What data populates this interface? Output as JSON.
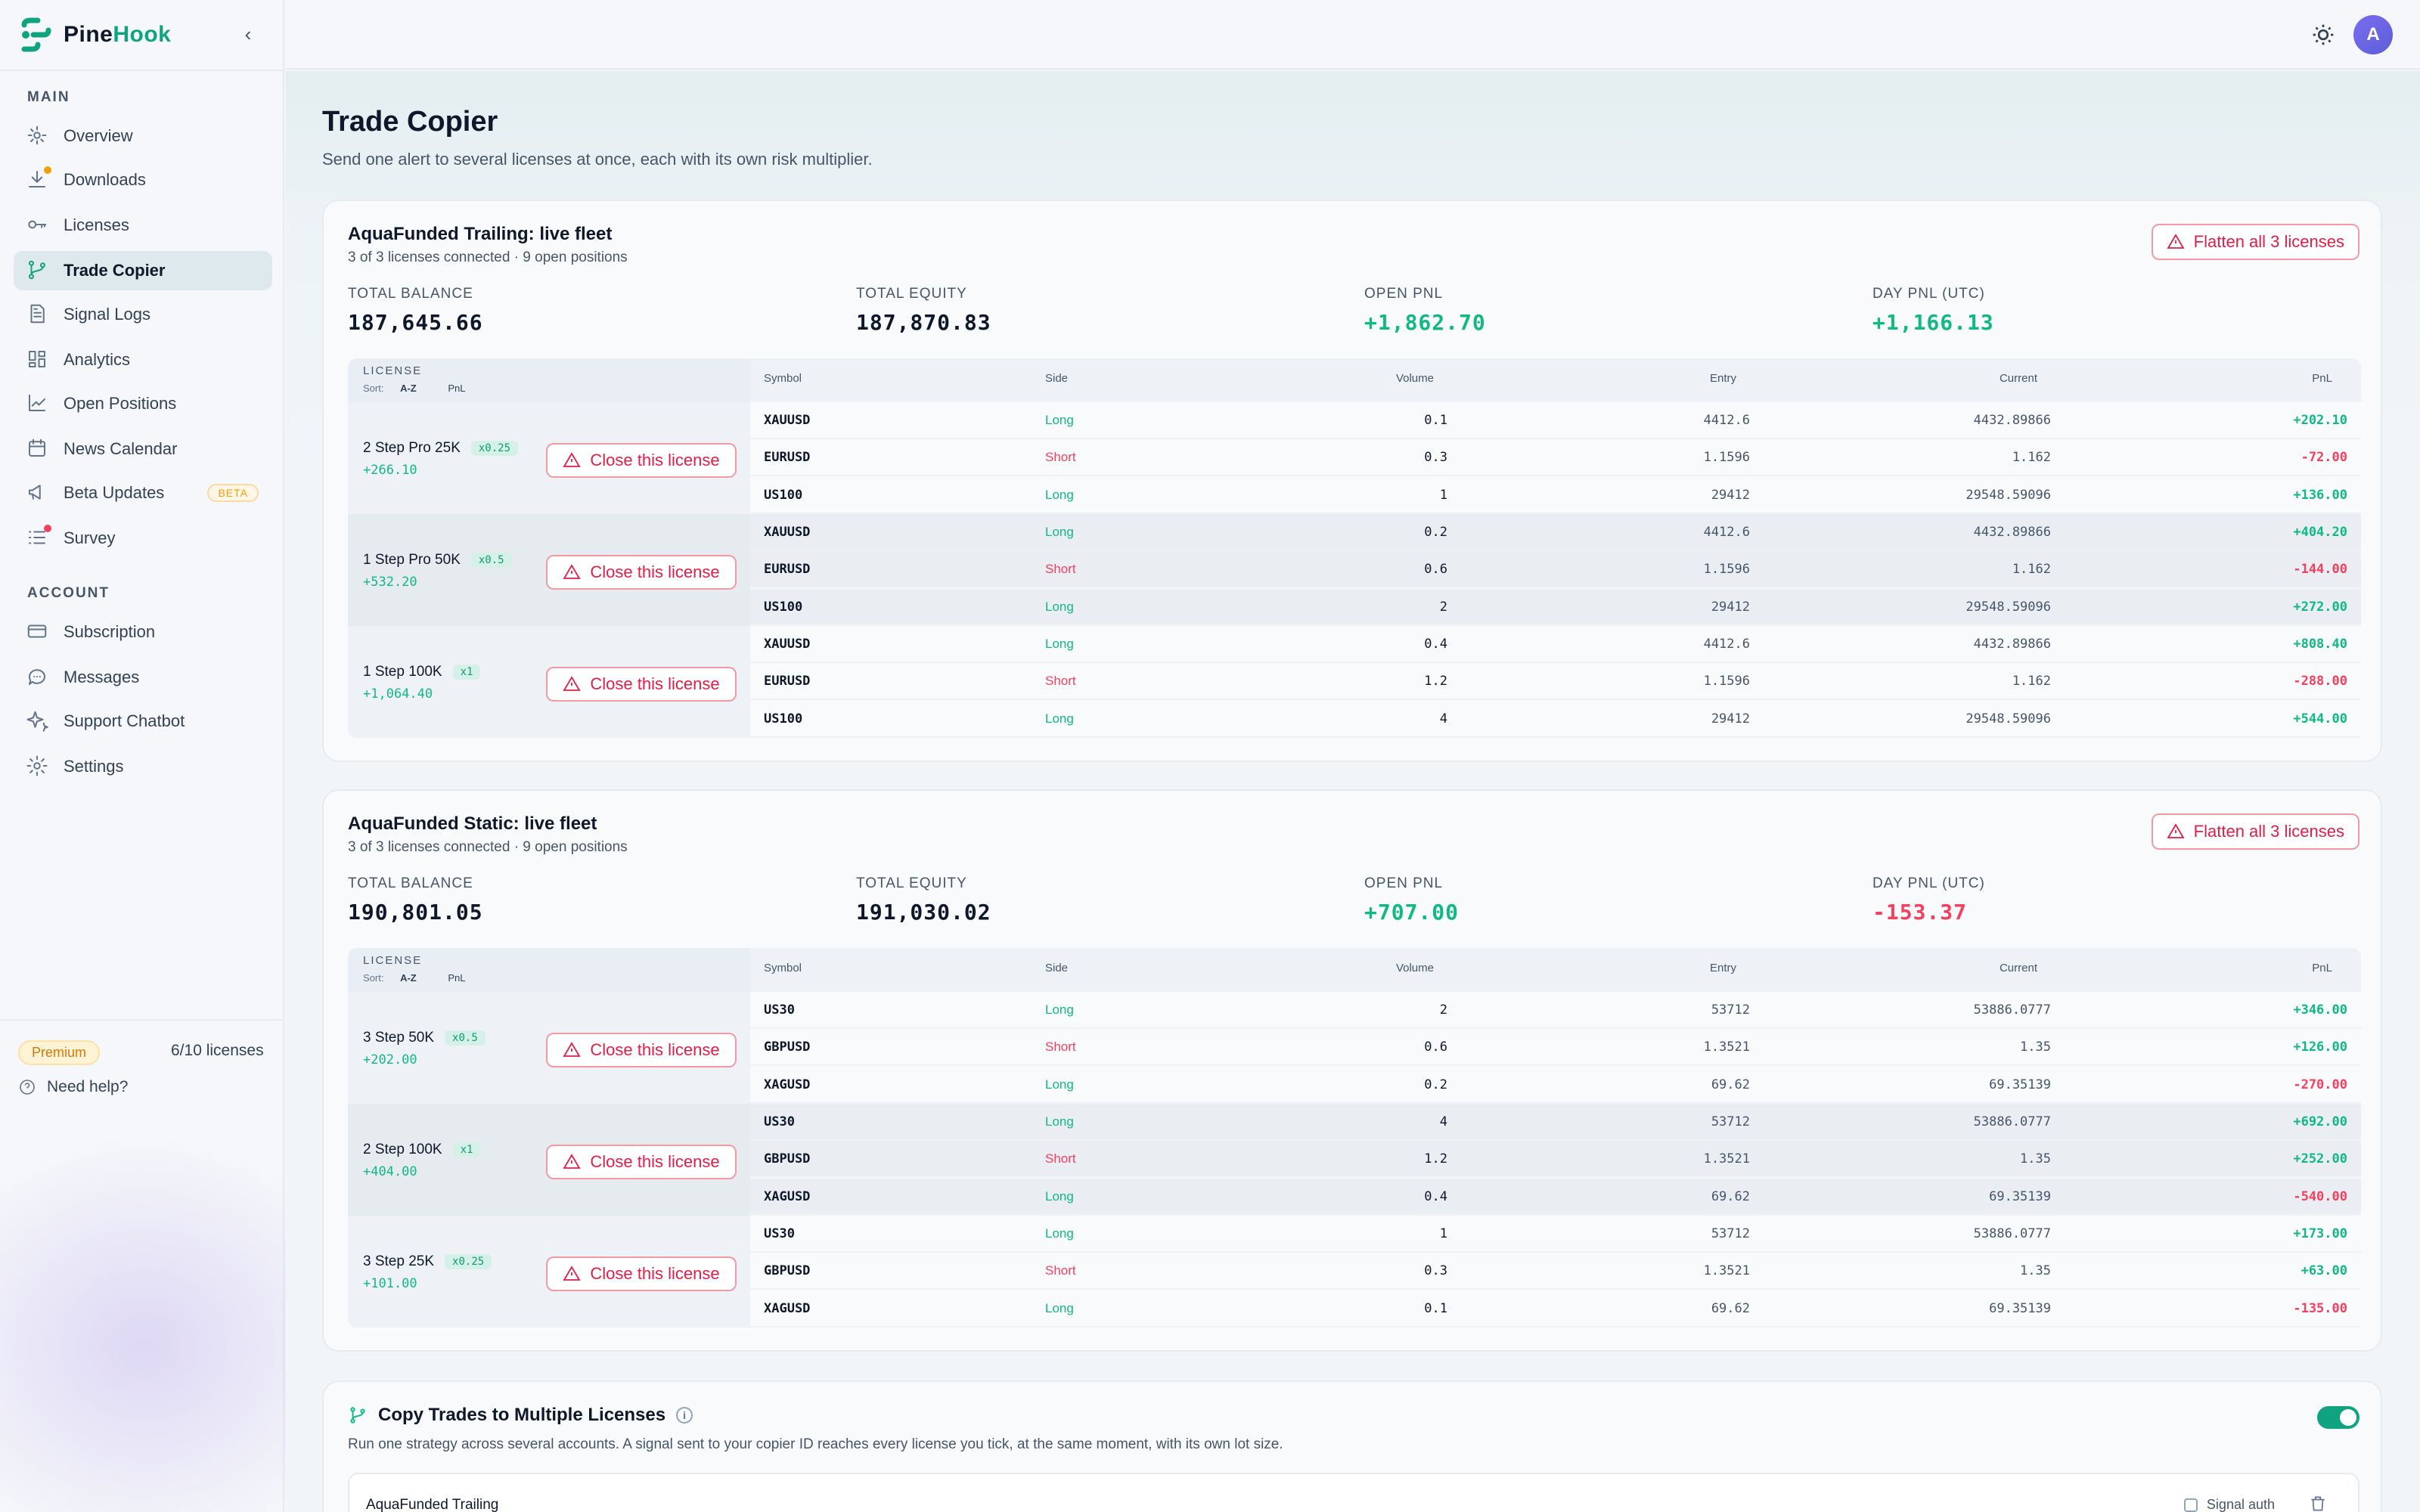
{
  "brand": {
    "name_part1": "Pine",
    "name_part2": "Hook"
  },
  "sidebar": {
    "section_main": "MAIN",
    "section_account": "ACCOUNT",
    "main_items": [
      {
        "label": "Overview",
        "icon": "overview-icon"
      },
      {
        "label": "Downloads",
        "icon": "download-icon",
        "dot_color": "#f59e0b"
      },
      {
        "label": "Licenses",
        "icon": "key-icon"
      },
      {
        "label": "Trade Copier",
        "icon": "branch-icon",
        "active": true
      },
      {
        "label": "Signal Logs",
        "icon": "document-icon"
      },
      {
        "label": "Analytics",
        "icon": "grid-icon"
      },
      {
        "label": "Open Positions",
        "icon": "line-chart-icon"
      },
      {
        "label": "News Calendar",
        "icon": "calendar-icon"
      },
      {
        "label": "Beta Updates",
        "icon": "megaphone-icon",
        "badge": "BETA"
      },
      {
        "label": "Survey",
        "icon": "list-icon",
        "dot_color": "#f43f5e"
      }
    ],
    "account_items": [
      {
        "label": "Subscription",
        "icon": "card-icon"
      },
      {
        "label": "Messages",
        "icon": "chat-icon"
      },
      {
        "label": "Support Chatbot",
        "icon": "sparkle-icon"
      },
      {
        "label": "Settings",
        "icon": "gear-icon"
      }
    ],
    "plan": "Premium",
    "license_count": "6/10 licenses",
    "need_help": "Need help?"
  },
  "topbar": {
    "avatar_initial": "A"
  },
  "page": {
    "title": "Trade Copier",
    "subtitle": "Send one alert to several licenses at once, each with its own risk multiplier."
  },
  "table_headers": {
    "license": "LICENSE",
    "sort": "Sort:",
    "sort_az": "A-Z",
    "sort_pnl": "PnL",
    "symbol": "Symbol",
    "side": "Side",
    "volume": "Volume",
    "entry": "Entry",
    "current": "Current",
    "pnl": "PnL"
  },
  "close_label": "Close this license",
  "fleets": [
    {
      "title": "AquaFunded Trailing: live fleet",
      "subtitle": "3 of 3 licenses connected · 9 open positions",
      "flatten_label": "Flatten all 3 licenses",
      "stats": [
        {
          "label": "TOTAL BALANCE",
          "value": "187,645.66",
          "tone": "neutral"
        },
        {
          "label": "TOTAL EQUITY",
          "value": "187,870.83",
          "tone": "neutral"
        },
        {
          "label": "OPEN PNL",
          "value": "+1,862.70",
          "tone": "pos"
        },
        {
          "label": "DAY PNL (UTC)",
          "value": "+1,166.13",
          "tone": "pos"
        }
      ],
      "licenses": [
        {
          "name": "2 Step Pro 25K",
          "mult": "x0.25",
          "pnl": "+266.10",
          "positions": [
            {
              "symbol": "XAUUSD",
              "side": "Long",
              "volume": "0.1",
              "entry": "4412.6",
              "current": "4432.89866",
              "pnl": "+202.10"
            },
            {
              "symbol": "EURUSD",
              "side": "Short",
              "volume": "0.3",
              "entry": "1.1596",
              "current": "1.162",
              "pnl": "-72.00"
            },
            {
              "symbol": "US100",
              "side": "Long",
              "volume": "1",
              "entry": "29412",
              "current": "29548.59096",
              "pnl": "+136.00"
            }
          ]
        },
        {
          "name": "1 Step Pro 50K",
          "mult": "x0.5",
          "pnl": "+532.20",
          "positions": [
            {
              "symbol": "XAUUSD",
              "side": "Long",
              "volume": "0.2",
              "entry": "4412.6",
              "current": "4432.89866",
              "pnl": "+404.20"
            },
            {
              "symbol": "EURUSD",
              "side": "Short",
              "volume": "0.6",
              "entry": "1.1596",
              "current": "1.162",
              "pnl": "-144.00"
            },
            {
              "symbol": "US100",
              "side": "Long",
              "volume": "2",
              "entry": "29412",
              "current": "29548.59096",
              "pnl": "+272.00"
            }
          ]
        },
        {
          "name": "1 Step 100K",
          "mult": "x1",
          "pnl": "+1,064.40",
          "positions": [
            {
              "symbol": "XAUUSD",
              "side": "Long",
              "volume": "0.4",
              "entry": "4412.6",
              "current": "4432.89866",
              "pnl": "+808.40"
            },
            {
              "symbol": "EURUSD",
              "side": "Short",
              "volume": "1.2",
              "entry": "1.1596",
              "current": "1.162",
              "pnl": "-288.00"
            },
            {
              "symbol": "US100",
              "side": "Long",
              "volume": "4",
              "entry": "29412",
              "current": "29548.59096",
              "pnl": "+544.00"
            }
          ]
        }
      ]
    },
    {
      "title": "AquaFunded Static: live fleet",
      "subtitle": "3 of 3 licenses connected · 9 open positions",
      "flatten_label": "Flatten all 3 licenses",
      "stats": [
        {
          "label": "TOTAL BALANCE",
          "value": "190,801.05",
          "tone": "neutral"
        },
        {
          "label": "TOTAL EQUITY",
          "value": "191,030.02",
          "tone": "neutral"
        },
        {
          "label": "OPEN PNL",
          "value": "+707.00",
          "tone": "pos"
        },
        {
          "label": "DAY PNL (UTC)",
          "value": "-153.37",
          "tone": "neg"
        }
      ],
      "licenses": [
        {
          "name": "3 Step 50K",
          "mult": "x0.5",
          "pnl": "+202.00",
          "positions": [
            {
              "symbol": "US30",
              "side": "Long",
              "volume": "2",
              "entry": "53712",
              "current": "53886.0777",
              "pnl": "+346.00"
            },
            {
              "symbol": "GBPUSD",
              "side": "Short",
              "volume": "0.6",
              "entry": "1.3521",
              "current": "1.35",
              "pnl": "+126.00"
            },
            {
              "symbol": "XAGUSD",
              "side": "Long",
              "volume": "0.2",
              "entry": "69.62",
              "current": "69.35139",
              "pnl": "-270.00"
            }
          ]
        },
        {
          "name": "2 Step 100K",
          "mult": "x1",
          "pnl": "+404.00",
          "positions": [
            {
              "symbol": "US30",
              "side": "Long",
              "volume": "4",
              "entry": "53712",
              "current": "53886.0777",
              "pnl": "+692.00"
            },
            {
              "symbol": "GBPUSD",
              "side": "Short",
              "volume": "1.2",
              "entry": "1.3521",
              "current": "1.35",
              "pnl": "+252.00"
            },
            {
              "symbol": "XAGUSD",
              "side": "Long",
              "volume": "0.4",
              "entry": "69.62",
              "current": "69.35139",
              "pnl": "-540.00"
            }
          ]
        },
        {
          "name": "3 Step 25K",
          "mult": "x0.25",
          "pnl": "+101.00",
          "positions": [
            {
              "symbol": "US30",
              "side": "Long",
              "volume": "1",
              "entry": "53712",
              "current": "53886.0777",
              "pnl": "+173.00"
            },
            {
              "symbol": "GBPUSD",
              "side": "Short",
              "volume": "0.3",
              "entry": "1.3521",
              "current": "1.35",
              "pnl": "+63.00"
            },
            {
              "symbol": "XAGUSD",
              "side": "Long",
              "volume": "0.1",
              "entry": "69.62",
              "current": "69.35139",
              "pnl": "-135.00"
            }
          ]
        }
      ]
    }
  ],
  "copy_section": {
    "title": "Copy Trades to Multiple Licenses",
    "description": "Run one strategy across several accounts. A signal sent to your copier ID reaches every license you tick, at the same moment, with its own lot size.",
    "enabled": true,
    "group_name": "AquaFunded Trailing",
    "signal_auth_label": "Signal auth"
  },
  "colors": {
    "accent": "#10a37f",
    "positive": "#10b981",
    "negative": "#f43f5e",
    "long": "#10b981",
    "short": "#f43f5e"
  }
}
